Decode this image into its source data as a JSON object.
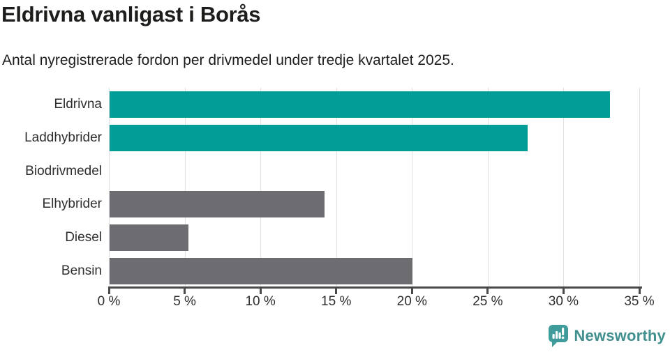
{
  "header": {
    "title": "Eldrivna vanligast i Borås",
    "subtitle": "Antal nyregistrerade fordon per drivmedel under tredje kvartalet 2025."
  },
  "chart_data": {
    "type": "bar",
    "orientation": "horizontal",
    "title": "Eldrivna vanligast i Borås",
    "subtitle": "Antal nyregistrerade fordon per drivmedel under tredje kvartalet 2025.",
    "categories": [
      "Eldrivna",
      "Laddhybrider",
      "Biodrivmedel",
      "Elhybrider",
      "Diesel",
      "Bensin"
    ],
    "values": [
      33.0,
      27.6,
      0,
      14.2,
      5.2,
      20.0
    ],
    "unit": "%",
    "xlim": [
      0,
      35
    ],
    "x_ticks": [
      0,
      5,
      10,
      15,
      20,
      25,
      30,
      35
    ],
    "x_tick_labels": [
      "0 %",
      "5 %",
      "10 %",
      "15 %",
      "20 %",
      "25 %",
      "30 %",
      "35 %"
    ],
    "grid": true,
    "legend": false,
    "bar_color_roles": [
      "highlight",
      "highlight",
      "default",
      "default",
      "default",
      "default"
    ],
    "colors": {
      "highlight": "#009e96",
      "default": "#6c6c71",
      "gridline": "#e0e0e0",
      "axis": "#4a4a4a",
      "text": "#2e2e2e"
    }
  },
  "footer": {
    "brand": "Newsworthy",
    "logo_color": "#3f9c9b",
    "text_color": "#41908f"
  }
}
